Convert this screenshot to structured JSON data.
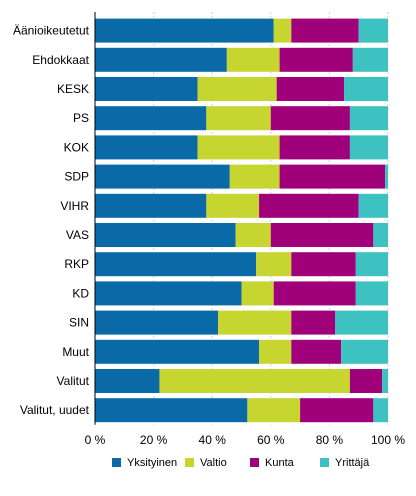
{
  "chart_data": {
    "type": "bar",
    "orientation": "horizontal",
    "stacked": "percent",
    "categories": [
      "Äänioikeutetut",
      "Ehdokkaat",
      "KESK",
      "PS",
      "KOK",
      "SDP",
      "VIHR",
      "VAS",
      "RKP",
      "KD",
      "SIN",
      "Muut",
      "Valitut",
      "Valitut, uudet"
    ],
    "series": [
      {
        "name": "Yksityinen",
        "color": "#0a6aa7",
        "values": [
          61,
          45,
          35,
          38,
          35,
          46,
          38,
          48,
          55,
          50,
          42,
          56,
          22,
          52
        ]
      },
      {
        "name": "Valtio",
        "color": "#c6d52f",
        "values": [
          6,
          18,
          27,
          22,
          28,
          17,
          18,
          12,
          12,
          11,
          25,
          11,
          65,
          18
        ]
      },
      {
        "name": "Kunta",
        "color": "#a0007a",
        "values": [
          23,
          25,
          23,
          27,
          24,
          36,
          34,
          35,
          22,
          28,
          15,
          17,
          11,
          25
        ]
      },
      {
        "name": "Yrittäjä",
        "color": "#3ec1c1",
        "values": [
          10,
          12,
          15,
          13,
          13,
          1,
          10,
          5,
          11,
          11,
          18,
          16,
          2,
          5
        ]
      }
    ],
    "x_ticks": [
      "0 %",
      "20 %",
      "40 %",
      "60 %",
      "80 %",
      "100 %"
    ],
    "xlim": [
      0,
      100
    ],
    "grid": true,
    "legend_position": "bottom"
  }
}
